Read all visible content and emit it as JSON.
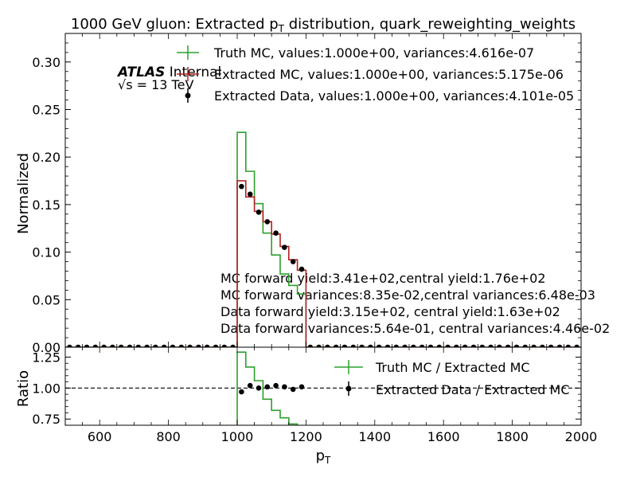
{
  "chart_data": [
    {
      "type": "line",
      "panel": "main",
      "title_main": "1000 GeV gluon: Extracted p",
      "title_sub": "T",
      "title_rest": " distribution, quark_reweighting_weights",
      "ylabel": "Normalized",
      "xlim": [
        500,
        2000
      ],
      "ylim": [
        0,
        0.33
      ],
      "yticks": [
        0.0,
        0.05,
        0.1,
        0.15,
        0.2,
        0.25,
        0.3
      ],
      "ytick_labels": [
        "0.00",
        "0.05",
        "0.10",
        "0.15",
        "0.20",
        "0.25",
        "0.30"
      ],
      "bin_edges": [
        500,
        525,
        550,
        575,
        600,
        625,
        650,
        675,
        700,
        725,
        750,
        775,
        800,
        825,
        850,
        875,
        900,
        925,
        950,
        975,
        1000,
        1025,
        1050,
        1075,
        1100,
        1125,
        1150,
        1175,
        1200,
        1225,
        1250,
        1275,
        1300,
        1325,
        1350,
        1375,
        1400,
        1425,
        1450,
        1475,
        1500,
        1525,
        1550,
        1575,
        1600,
        1625,
        1650,
        1675,
        1700,
        1725,
        1750,
        1775,
        1800,
        1825,
        1850,
        1875,
        1900,
        1925,
        1950,
        1975,
        2000
      ],
      "series": [
        {
          "name": "Truth MC, values:1.000e+00, variances:4.616e-07",
          "style": "step",
          "color": "#2ca02c",
          "values": [
            0,
            0,
            0,
            0,
            0,
            0,
            0,
            0,
            0,
            0,
            0,
            0,
            0,
            0,
            0,
            0,
            0,
            0,
            0,
            0,
            0.226,
            0.185,
            0.151,
            0.12,
            0.097,
            0.077,
            0.065,
            0.056,
            0,
            0,
            0,
            0,
            0,
            0,
            0,
            0,
            0,
            0,
            0,
            0,
            0,
            0,
            0,
            0,
            0,
            0,
            0,
            0,
            0,
            0,
            0,
            0,
            0,
            0,
            0,
            0,
            0,
            0,
            0,
            0
          ]
        },
        {
          "name": "Extracted MC, values:1.000e+00, variances:5.175e-06",
          "style": "step",
          "color": "#b22222",
          "values": [
            0,
            0,
            0,
            0,
            0,
            0,
            0,
            0,
            0,
            0,
            0,
            0,
            0,
            0,
            0,
            0,
            0,
            0,
            0,
            0,
            0.175,
            0.158,
            0.143,
            0.132,
            0.119,
            0.106,
            0.092,
            0.081,
            0,
            0,
            0,
            0,
            0,
            0,
            0,
            0,
            0,
            0,
            0,
            0,
            0,
            0,
            0,
            0,
            0,
            0,
            0,
            0,
            0,
            0,
            0,
            0,
            0,
            0,
            0,
            0,
            0,
            0,
            0,
            0
          ]
        },
        {
          "name": "Extracted Data, values:1.000e+00, variances:4.101e-05",
          "style": "points",
          "color": "#000000",
          "values": [
            0,
            0,
            0,
            0,
            0,
            0,
            0,
            0,
            0,
            0,
            0,
            0,
            0,
            0,
            0,
            0,
            0,
            0,
            0,
            0,
            0.169,
            0.161,
            0.142,
            0.132,
            0.12,
            0.105,
            0.09,
            0.082,
            0,
            0,
            0,
            0,
            0,
            0,
            0,
            0,
            0,
            0,
            0,
            0,
            0,
            0,
            0,
            0,
            0,
            0,
            0,
            0,
            0,
            0,
            0,
            0,
            0,
            0,
            0,
            0,
            0,
            0,
            0,
            0
          ]
        }
      ],
      "atlas_bold": "ATLAS",
      "atlas_rest": " Internal",
      "energy_label": "√s =  13 TeV",
      "annotations": [
        "MC forward yield:3.41e+02,central yield:1.76e+02",
        "MC forward variances:8.35e-02,central variances:6.48e-03",
        "Data forward yield:3.15e+02, central yield:1.63e+02",
        "Data forward variances:5.64e-01, central variances:4.46e-02"
      ]
    },
    {
      "type": "line",
      "panel": "ratio",
      "ylabel": "Ratio",
      "xlabel_main": "p",
      "xlabel_sub": "T",
      "xlim": [
        500,
        2000
      ],
      "ylim": [
        0.7,
        1.33
      ],
      "yticks": [
        0.75,
        1.0,
        1.25
      ],
      "ytick_labels": [
        "0.75",
        "1.00",
        "1.25"
      ],
      "xticks": [
        600,
        800,
        1000,
        1200,
        1400,
        1600,
        1800,
        2000
      ],
      "xtick_labels": [
        "600",
        "800",
        "1000",
        "1200",
        "1400",
        "1600",
        "1800",
        "2000"
      ],
      "reference_line": 1.0,
      "bin_edges": [
        1000,
        1025,
        1050,
        1075,
        1100,
        1125,
        1150,
        1175,
        1200
      ],
      "series": [
        {
          "name": "Truth MC / Extracted MC",
          "style": "step",
          "color": "#2ca02c",
          "values": [
            1.29,
            1.17,
            1.06,
            0.91,
            0.82,
            0.76,
            0.71,
            0.69
          ]
        },
        {
          "name": "Extracted Data / Extracted MC",
          "style": "points",
          "color": "#000000",
          "values": [
            0.97,
            1.02,
            1.0,
            1.01,
            1.02,
            1.01,
            0.99,
            1.01
          ]
        }
      ]
    }
  ]
}
